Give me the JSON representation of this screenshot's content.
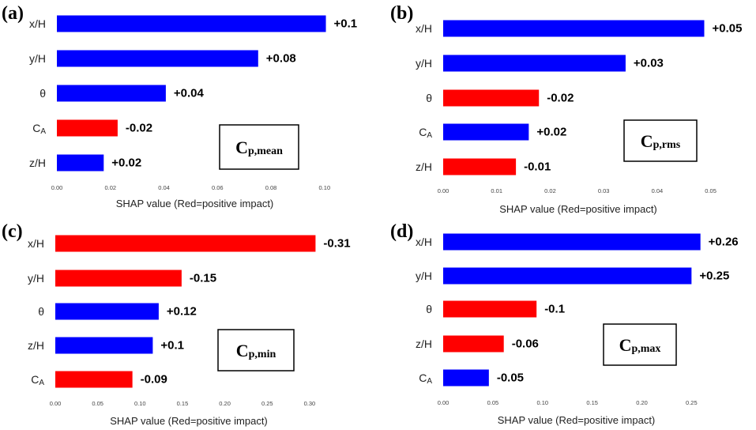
{
  "colors": {
    "positive": "#ff0000",
    "negative": "#0000ff"
  },
  "chart_data": [
    {
      "type": "bar",
      "orientation": "horizontal",
      "panel": "(a)",
      "box_main": "C",
      "box_sub": "p,mean",
      "categories": [
        "x/H",
        "y/H",
        "θ",
        "C_A",
        "z/H"
      ],
      "values": [
        0.1005,
        0.0752,
        0.0407,
        0.0227,
        0.0175
      ],
      "colors": [
        "negative",
        "negative",
        "negative",
        "positive",
        "negative"
      ],
      "value_labels": [
        "+0.1",
        "+0.08",
        "+0.04",
        "-0.02",
        "+0.02"
      ],
      "xlim": [
        0,
        0.103
      ],
      "ticks": [
        0,
        0.02,
        0.04,
        0.06,
        0.08,
        0.1
      ],
      "tick_labels": [
        "0.00",
        "0.02",
        "0.04",
        "0.06",
        "0.08",
        "0.10"
      ],
      "xlabel": "SHAP value (Red=positive impact)"
    },
    {
      "type": "bar",
      "orientation": "horizontal",
      "panel": "(b)",
      "box_main": "C",
      "box_sub": "p,rms",
      "categories": [
        "x/H",
        "y/H",
        "θ",
        "C_A",
        "z/H"
      ],
      "values": [
        0.0488,
        0.0341,
        0.0179,
        0.016,
        0.0136
      ],
      "colors": [
        "negative",
        "negative",
        "positive",
        "negative",
        "positive"
      ],
      "value_labels": [
        "+0.05",
        "+0.03",
        "-0.02",
        "+0.02",
        "-0.01"
      ],
      "xlim": [
        0,
        0.0505
      ],
      "ticks": [
        0,
        0.01,
        0.02,
        0.03,
        0.04,
        0.05
      ],
      "tick_labels": [
        "0.00",
        "0.01",
        "0.02",
        "0.03",
        "0.04",
        "0.05"
      ],
      "xlabel": "SHAP value (Red=positive impact)"
    },
    {
      "type": "bar",
      "orientation": "horizontal",
      "panel": "(c)",
      "box_main": "C",
      "box_sub": "p,min",
      "categories": [
        "x/H",
        "y/H",
        "θ",
        "z/H",
        "C_A"
      ],
      "values": [
        0.307,
        0.149,
        0.122,
        0.115,
        0.091
      ],
      "colors": [
        "positive",
        "positive",
        "negative",
        "negative",
        "positive"
      ],
      "value_labels": [
        "-0.31",
        "-0.15",
        "+0.12",
        "+0.1",
        "-0.09"
      ],
      "xlim": [
        0,
        0.315
      ],
      "ticks": [
        0,
        0.05,
        0.1,
        0.15,
        0.2,
        0.25,
        0.3
      ],
      "tick_labels": [
        "0.00",
        "0.05",
        "0.10",
        "0.15",
        "0.20",
        "0.25",
        "0.30"
      ],
      "xlabel": "SHAP value (Red=positive impact)"
    },
    {
      "type": "bar",
      "orientation": "horizontal",
      "panel": "(d)",
      "box_main": "C",
      "box_sub": "p,max",
      "categories": [
        "x/H",
        "y/H",
        "θ",
        "z/H",
        "C_A"
      ],
      "values": [
        0.259,
        0.25,
        0.094,
        0.061,
        0.046
      ],
      "colors": [
        "negative",
        "negative",
        "positive",
        "positive",
        "negative"
      ],
      "value_labels": [
        "+0.26",
        "+0.25",
        "-0.1",
        "-0.06",
        "-0.05"
      ],
      "xlim": [
        0,
        0.268
      ],
      "ticks": [
        0,
        0.05,
        0.1,
        0.15,
        0.2,
        0.25
      ],
      "tick_labels": [
        "0.00",
        "0.05",
        "0.10",
        "0.15",
        "0.20",
        "0.25"
      ],
      "xlabel": "SHAP value (Red=positive impact)"
    }
  ]
}
